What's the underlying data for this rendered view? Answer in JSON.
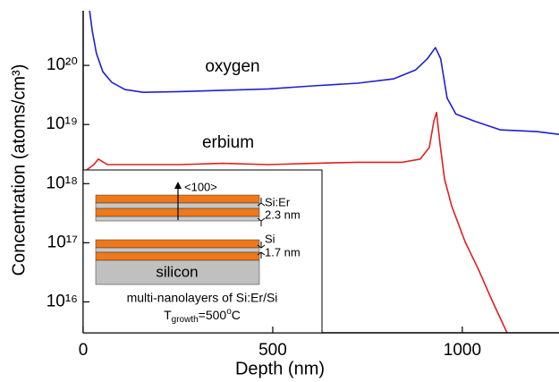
{
  "chart_data": {
    "type": "line",
    "x_label": "Depth (nm)",
    "y_label": "Concentration (atoms/cm³)",
    "xlim": [
      0,
      1255
    ],
    "xticks": [
      0,
      500,
      1000
    ],
    "ylim": [
      3000000000000000.0,
      8.4e+20
    ],
    "log_y": true,
    "yticks": [
      {
        "value": 1e+16,
        "label": "10¹⁶"
      },
      {
        "value": 1e+17,
        "label": "10¹⁷"
      },
      {
        "value": 1e+18,
        "label": "10¹⁸"
      },
      {
        "value": 1e+19,
        "label": "10¹⁹"
      },
      {
        "value": 1e+20,
        "label": "10²⁰"
      }
    ],
    "series": [
      {
        "name": "oxygen",
        "color": "#1f1fd0",
        "x": [
          17,
          24,
          35,
          52,
          75,
          110,
          158,
          252,
          370,
          488,
          606,
          724,
          818,
          877,
          908,
          929,
          943,
          960,
          983,
          1031,
          1101,
          1196,
          1255
        ],
        "values": [
          8.4e+20,
          3.8e+20,
          1.6e+20,
          7.8e+19,
          5.2e+19,
          3.9e+19,
          3.5e+19,
          3.6e+19,
          3.8e+19,
          4e+19,
          4.5e+19,
          5e+19,
          5.9e+19,
          8.4e+19,
          1.3e+20,
          2e+20,
          1.3e+20,
          2.8e+19,
          1.5e+19,
          1.15e+19,
          8.1e+18,
          7.6e+18,
          6.8e+18
        ]
      },
      {
        "name": "erbium",
        "color": "#e02020",
        "x": [
          0,
          5,
          9,
          28,
          40,
          64,
          134,
          252,
          370,
          488,
          606,
          724,
          842,
          889,
          913,
          925,
          932,
          941,
          953,
          972,
          1007,
          1042,
          1078,
          1118
        ],
        "values": [
          3000000000000000.0,
          2.1e+17,
          1.7e+18,
          2.1e+18,
          2.6e+18,
          2.1e+18,
          2.1e+18,
          2.1e+18,
          2.2e+18,
          2.1e+18,
          2.2e+18,
          2.3e+18,
          2.3e+18,
          2.6e+18,
          4.1e+18,
          1.15e+19,
          1.6e+19,
          4.8e+18,
          1.2e+18,
          4.2e+17,
          1.05e+17,
          3.6e+16,
          1.07e+16,
          3000000000000000.0
        ]
      }
    ],
    "inset": {
      "direction": "<100>",
      "layer_top": "Si:Er",
      "thickness_top": "2.3 nm",
      "layer_bottom": "Si",
      "thickness_bottom": "1.7 nm",
      "substrate": "silicon",
      "caption": "multi-nanolayers of Si:Er/Si",
      "growth": [
        "T",
        "growth",
        "=500",
        "o",
        "C"
      ]
    }
  }
}
